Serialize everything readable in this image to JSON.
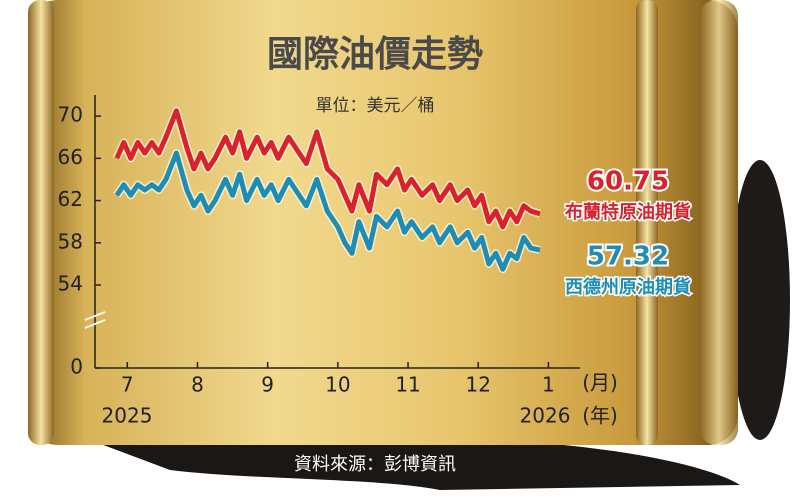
{
  "chart_data": {
    "type": "line",
    "title": "國際油價走勢",
    "subtitle": "單位：美元／桶",
    "source": "資料來源：彭博資訊",
    "x_unit": "(月)",
    "year_unit": "(年)",
    "years": [
      "2025",
      "2026"
    ],
    "x": [
      6.85,
      6.95,
      7.05,
      7.15,
      7.25,
      7.35,
      7.45,
      7.55,
      7.7,
      7.85,
      7.95,
      8.05,
      8.15,
      8.25,
      8.4,
      8.5,
      8.6,
      8.7,
      8.85,
      8.95,
      9.05,
      9.15,
      9.3,
      9.45,
      9.55,
      9.7,
      9.85,
      10.0,
      10.1,
      10.2,
      10.3,
      10.45,
      10.55,
      10.7,
      10.85,
      10.95,
      11.05,
      11.2,
      11.35,
      11.45,
      11.6,
      11.7,
      11.85,
      11.95,
      12.05,
      12.15,
      12.25,
      12.35,
      12.45,
      12.55,
      12.65,
      12.75,
      12.88
    ],
    "series": [
      {
        "name": "布蘭特原油期貨",
        "color": "#d8232f",
        "values": [
          66,
          67.5,
          66,
          67.5,
          66.5,
          67.5,
          66.5,
          68,
          70.5,
          67,
          65,
          66.5,
          65,
          66,
          68,
          66.5,
          68.5,
          66,
          68,
          66.5,
          67.5,
          66,
          68,
          66.5,
          65.5,
          68.5,
          65,
          64,
          62.5,
          61,
          63.5,
          61,
          64.5,
          63.5,
          65,
          63,
          64,
          62.5,
          63.5,
          62,
          63.5,
          62,
          63,
          61.5,
          62.5,
          60,
          61,
          59.5,
          61,
          60,
          61.5,
          61,
          60.75
        ]
      },
      {
        "name": "西德州原油期貨",
        "color": "#1e8db5",
        "values": [
          62.5,
          63.5,
          62.5,
          63.5,
          63,
          63.5,
          63,
          64,
          66.5,
          63,
          61.5,
          62.5,
          61,
          62,
          64,
          62.5,
          64.5,
          62,
          64,
          62.5,
          63.5,
          62,
          64,
          62.5,
          61.5,
          64,
          61,
          59.5,
          58,
          57,
          60,
          57.5,
          60.5,
          59.5,
          61,
          59,
          60,
          58.5,
          59.5,
          58,
          59.5,
          58,
          59,
          57.5,
          58.5,
          56,
          57,
          55.5,
          57,
          56.5,
          58.5,
          57.5,
          57.32
        ]
      }
    ],
    "xlim": [
      6.54,
      13.45
    ],
    "xticks": [
      7,
      8,
      9,
      10,
      11,
      12,
      {
        "value": 13,
        "label": "1"
      }
    ],
    "ylim": [
      0,
      72
    ],
    "yticks": [
      0,
      54,
      58,
      62,
      66,
      70
    ],
    "y_break": true
  }
}
